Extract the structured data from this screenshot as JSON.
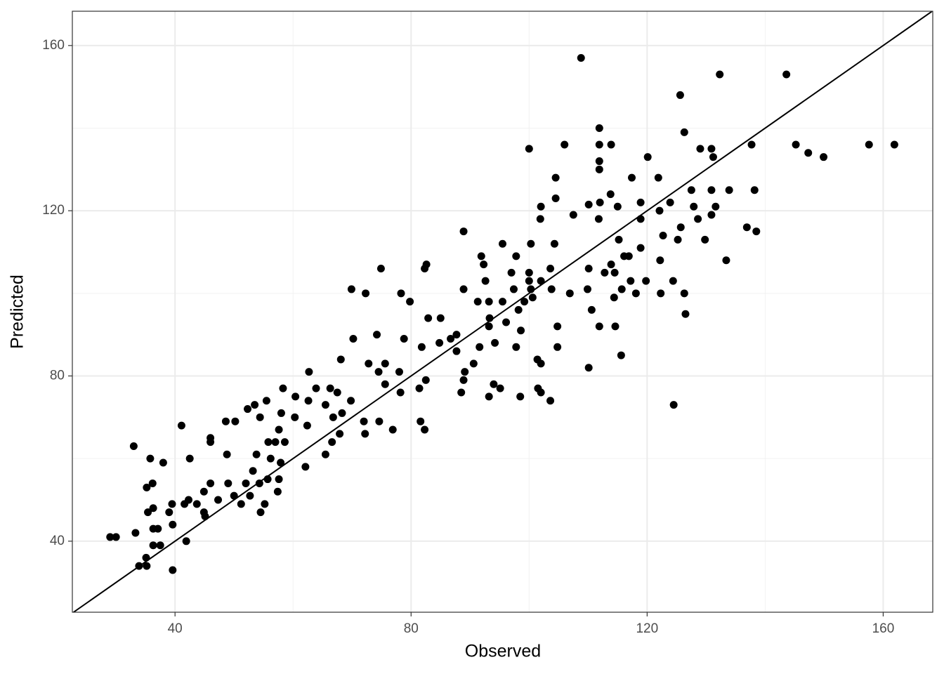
{
  "chart_data": {
    "type": "scatter",
    "x_label": "Observed",
    "y_label": "Predicted",
    "color": "#000000",
    "grid": true,
    "reference_line": "identity",
    "xlim": [
      22.6,
      168.4
    ],
    "ylim": [
      22.8,
      168.3
    ],
    "xticks": [
      40,
      80,
      120,
      160
    ],
    "yticks": [
      40,
      80,
      120,
      160
    ],
    "x_minor_ticks": [
      60,
      100,
      140
    ],
    "y_minor_ticks": [
      60,
      100,
      140
    ],
    "x": [
      108.8,
      132.3,
      143.6,
      125.6,
      111.9,
      126.3,
      100.0,
      106.0,
      111.9,
      113.9,
      145.2,
      147.3,
      149.9,
      157.6,
      161.9,
      137.7,
      129.0,
      130.9,
      131.2,
      111.9,
      111.9,
      120.1,
      121.9,
      117.4,
      104.5,
      113.8,
      133.9,
      138.2,
      130.9,
      127.5,
      123.9,
      112.0,
      110.1,
      115.0,
      118.9,
      102.0,
      104.5,
      131.6,
      127.9,
      122.1,
      118.9,
      111.8,
      101.9,
      107.5,
      88.9,
      136.9,
      138.5,
      130.9,
      125.7,
      128.6,
      129.8,
      122.7,
      125.2,
      115.2,
      133.4,
      104.3,
      100.3,
      95.5,
      91.9,
      97.8,
      92.3,
      110.1,
      82.3,
      82.6,
      74.9,
      112.8,
      113.9,
      118.9,
      116.1,
      122.2,
      116.9,
      69.9,
      72.3,
      78.3,
      79.8,
      88.9,
      92.6,
      97.4,
      100.3,
      103.8,
      106.9,
      109.9,
      110.6,
      111.9,
      114.6,
      115.6,
      110.1,
      124.5,
      126.5,
      122.3,
      124.4,
      126.3,
      117.2,
      119.8,
      115.7,
      118.1,
      114.4,
      114.5,
      102.0,
      103.6,
      101.5,
      98.5,
      93.2,
      94.0,
      95.1,
      88.9,
      88.5,
      82.3,
      82.5,
      102.0,
      101.4,
      104.8,
      104.8,
      97.8,
      98.6,
      94.2,
      91.6,
      89.1,
      90.6,
      87.7,
      84.8,
      81.8,
      78.8,
      82.9,
      85.0,
      86.7,
      87.7,
      93.2,
      93.3,
      91.3,
      93.2,
      95.5,
      96.1,
      98.2,
      100.6,
      102.0,
      100.0,
      103.6,
      97.0,
      100.0,
      99.2,
      74.2,
      70.2,
      72.8,
      75.6,
      75.6,
      74.5,
      78.2,
      78.0,
      81.4,
      76.9,
      81.6,
      74.6,
      72.0,
      72.2,
      69.8,
      68.3,
      67.9,
      66.6,
      65.5,
      62.1,
      62.4,
      62.6,
      63.9,
      66.3,
      67.5,
      65.5,
      66.8,
      68.1,
      62.7,
      60.4,
      58.3,
      58.0,
      58.6,
      60.3,
      57.6,
      55.8,
      55.5,
      53.5,
      52.3,
      54.4,
      53.8,
      53.2,
      52.0,
      51.2,
      52.7,
      54.5,
      54.3,
      55.7,
      56.2,
      57.0,
      57.6,
      57.9,
      48.6,
      50.2,
      46.0,
      48.8,
      46.0,
      44.9,
      46.0,
      44.9,
      45.1,
      42.3,
      41.1,
      41.6,
      43.7,
      39.5,
      39.0,
      39.6,
      38.0,
      35.8,
      36.2,
      35.2,
      35.4,
      36.3,
      36.3,
      37.1,
      36.3,
      37.5,
      35.1,
      33.9,
      35.2,
      33.0,
      33.3,
      29.0,
      30.0,
      39.6,
      41.9,
      42.5,
      47.3,
      49.0,
      50.0,
      55.2,
      57.4
    ],
    "values": [
      157,
      153,
      153,
      148,
      140,
      139,
      135,
      136,
      136,
      136,
      136,
      134,
      133,
      136,
      136,
      136,
      135,
      135,
      133,
      132,
      130,
      133,
      128,
      128,
      128,
      124,
      125,
      125,
      125,
      125,
      122,
      122,
      121.5,
      121,
      122,
      121,
      123,
      121,
      121,
      120,
      118,
      118,
      118,
      119,
      115,
      116,
      115,
      119,
      116,
      118,
      113,
      114,
      113,
      113,
      108,
      112,
      112,
      112,
      109,
      109,
      107,
      106,
      106,
      107,
      106,
      105,
      107,
      111,
      109,
      108,
      109,
      101,
      100,
      100,
      98,
      101,
      103,
      101,
      101,
      101,
      100,
      101,
      96,
      92,
      92,
      85,
      82,
      73,
      95,
      100,
      103,
      100,
      103,
      103,
      101,
      100,
      99,
      105,
      76,
      74,
      77,
      75,
      75,
      78,
      77,
      79,
      76,
      67,
      79,
      83,
      84,
      87,
      92,
      87,
      91,
      88,
      87,
      81,
      83,
      86,
      88,
      87,
      89,
      94,
      94,
      89,
      90,
      92,
      94,
      98,
      98,
      98,
      93,
      96,
      99,
      103,
      105,
      106,
      105,
      103,
      98,
      90,
      89,
      83,
      83,
      78,
      81,
      76,
      81,
      77,
      67,
      69,
      69,
      69,
      66,
      74,
      71,
      66,
      64,
      61,
      58,
      68,
      74,
      77,
      77,
      76,
      73,
      70,
      84,
      81,
      75,
      77,
      71,
      64,
      70,
      67,
      64,
      74,
      73,
      72,
      70,
      61,
      57,
      54,
      49,
      51,
      47,
      54,
      55,
      60,
      64,
      55,
      59,
      69,
      69,
      64,
      61,
      54,
      52,
      65,
      47,
      46,
      50,
      68,
      49,
      49,
      49,
      47,
      44,
      59,
      60,
      54,
      53,
      47,
      48,
      43,
      43,
      39,
      39,
      36,
      34,
      34,
      63,
      42,
      41,
      41,
      33,
      40,
      60,
      50,
      54,
      51,
      49,
      52
    ]
  }
}
